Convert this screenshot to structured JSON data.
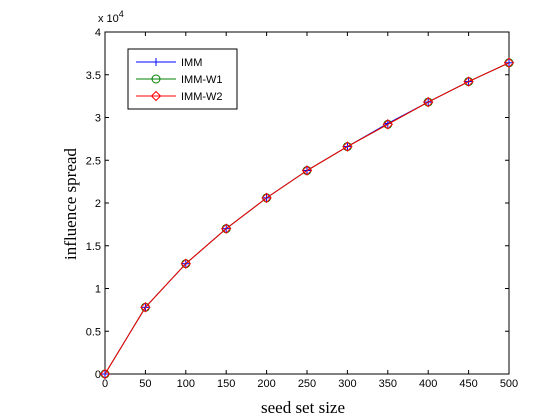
{
  "chart_data": {
    "type": "line",
    "xlabel": "seed set size",
    "ylabel": "influence spread",
    "y_multiplier": "x 10",
    "y_exponent": "4",
    "xlim": [
      0,
      500
    ],
    "ylim": [
      0,
      4
    ],
    "x_ticks": [
      0,
      50,
      100,
      150,
      200,
      250,
      300,
      350,
      400,
      450,
      500
    ],
    "y_ticks": [
      0,
      0.5,
      1,
      1.5,
      2,
      2.5,
      3,
      3.5,
      4
    ],
    "x_tick_labels": [
      "0",
      "50",
      "100",
      "150",
      "200",
      "250",
      "300",
      "350",
      "400",
      "450",
      "500"
    ],
    "y_tick_labels": [
      "0",
      "0.5",
      "1",
      "1.5",
      "2",
      "2.5",
      "3",
      "3.5",
      "4"
    ],
    "legend_position": "top-left",
    "grid": false,
    "x": [
      0,
      50,
      100,
      150,
      200,
      250,
      300,
      350,
      400,
      450,
      500
    ],
    "series": [
      {
        "name": "IMM",
        "color": "#0000ff",
        "marker": "plus",
        "values": [
          0,
          0.78,
          1.29,
          1.7,
          2.06,
          2.38,
          2.66,
          2.93,
          3.18,
          3.42,
          3.64
        ]
      },
      {
        "name": "IMM-W1",
        "color": "#008000",
        "marker": "circle",
        "values": [
          0,
          0.78,
          1.29,
          1.7,
          2.06,
          2.38,
          2.66,
          2.92,
          3.18,
          3.42,
          3.64
        ]
      },
      {
        "name": "IMM-W2",
        "color": "#ff0000",
        "marker": "diamond",
        "values": [
          0,
          0.78,
          1.29,
          1.7,
          2.06,
          2.38,
          2.66,
          2.92,
          3.18,
          3.42,
          3.64
        ]
      }
    ]
  }
}
